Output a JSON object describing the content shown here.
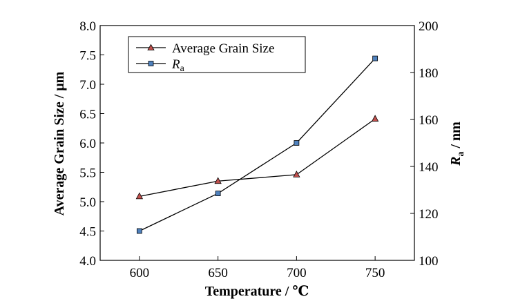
{
  "chart_data": {
    "type": "line",
    "xlabel": "Temperature / ℃",
    "ylabel_left": "Average Grain Size / μm",
    "ylabel_right_main": "R",
    "ylabel_right_sub": "a",
    "ylabel_right_unit": " / nm",
    "x": [
      600,
      650,
      700,
      750
    ],
    "xlim": [
      575,
      775
    ],
    "xticks": [
      "600",
      "650",
      "700",
      "750"
    ],
    "ylim_left": [
      4.0,
      8.0
    ],
    "yticks_left": [
      "4.0",
      "4.5",
      "5.0",
      "5.5",
      "6.0",
      "6.5",
      "7.0",
      "7.5",
      "8.0"
    ],
    "ylim_right": [
      100,
      200
    ],
    "yticks_right": [
      "100",
      "120",
      "140",
      "160",
      "180",
      "200"
    ],
    "series": [
      {
        "name": "Average Grain Size",
        "axis": "left",
        "marker": "triangle",
        "marker_color": "#c0504d",
        "values": [
          5.09,
          5.35,
          5.46,
          6.41
        ]
      },
      {
        "name_main": "R",
        "name_sub": "a",
        "axis": "right",
        "marker": "square",
        "marker_color": "#4f81bd",
        "values": [
          112.5,
          128.5,
          150.0,
          186.0
        ]
      }
    ],
    "legend_position": "top-left",
    "grid": false
  }
}
